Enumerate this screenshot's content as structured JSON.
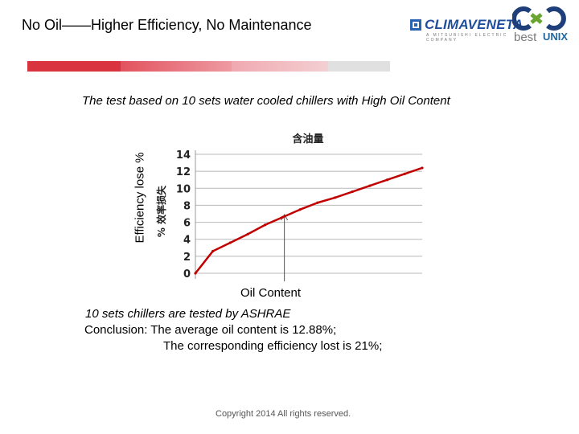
{
  "header": {
    "title": "No Oil——Higher Efficiency, No Maintenance",
    "logos": {
      "climaveneta": "CLIMAVENETA",
      "climaveneta_tagline": "A MITSUBISHI ELECTRIC COMPANY",
      "bestunix_best": "best",
      "bestunix_unix": "UNIX"
    },
    "divider_colors": [
      "#d9333f",
      "#e87c86",
      "#f0b7bc",
      "#dcdcdc"
    ]
  },
  "slide": {
    "subtitle": "The test based on 10 sets water cooled chillers with High Oil Content",
    "note": "10 sets chillers are tested by ASHRAE",
    "conclusion_line1": "Conclusion: The average oil content is 12.88%;",
    "conclusion_line2": "The corresponding efficiency lost is 21%;",
    "copyright": "Copyright 2014 All rights reserved."
  },
  "chart_data": {
    "type": "line",
    "title": "含油量",
    "xlabel": "Oil Content",
    "ylabel": "Efficiency lose %",
    "inner_ylabel": "% 效率损失",
    "ylim": [
      0,
      14
    ],
    "y_ticks": [
      0,
      2,
      4,
      6,
      8,
      10,
      12,
      14
    ],
    "grid": true,
    "series": [
      {
        "color": "#c00000",
        "x": [
          0,
          1,
          2,
          3,
          4,
          5,
          6,
          7,
          8,
          9,
          10,
          11,
          12,
          13
        ],
        "values": [
          0,
          2.6,
          3.6,
          4.6,
          5.7,
          6.6,
          7.5,
          8.3,
          8.9,
          9.6,
          10.3,
          11.0,
          11.7,
          12.4
        ]
      }
    ],
    "annotation": {
      "type": "arrow",
      "x": 5.1,
      "y": 7.0
    }
  }
}
